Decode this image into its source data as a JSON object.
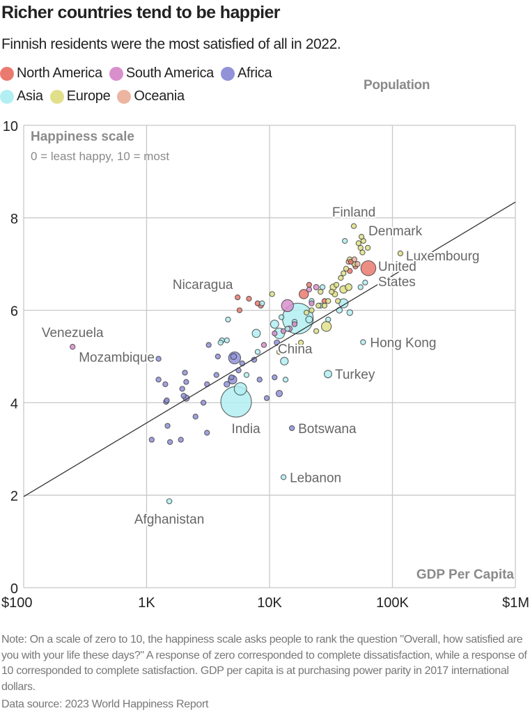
{
  "chart_data": {
    "type": "scatter",
    "title": "Richer countries tend to be happier",
    "subtitle": "Finnish residents were the most satisfied of all in 2022.",
    "xlabel": "GDP Per Capita",
    "ylabel": "Happiness scale",
    "ylabel_sub": "0 = least happy, 10 = most",
    "size_label": "Population",
    "x_scale": "log",
    "xlim": [
      100,
      1000000
    ],
    "ylim": [
      0,
      10
    ],
    "x_ticks": [
      {
        "value": 100,
        "label": "$100"
      },
      {
        "value": 1000,
        "label": "1K"
      },
      {
        "value": 10000,
        "label": "10K"
      },
      {
        "value": 100000,
        "label": "100K"
      },
      {
        "value": 1000000,
        "label": "$1M"
      }
    ],
    "y_ticks": [
      {
        "value": 0,
        "label": "0"
      },
      {
        "value": 2,
        "label": "2"
      },
      {
        "value": 4,
        "label": "4"
      },
      {
        "value": 6,
        "label": "6"
      },
      {
        "value": 8,
        "label": "8"
      },
      {
        "value": 10,
        "label": "10"
      }
    ],
    "grid": true,
    "legend_placement": "top-left",
    "regions": [
      {
        "name": "North America",
        "color": "#ea7a70"
      },
      {
        "name": "South America",
        "color": "#d98fcc"
      },
      {
        "name": "Africa",
        "color": "#9292d8"
      },
      {
        "name": "Asia",
        "color": "#b2eff2"
      },
      {
        "name": "Europe",
        "color": "#e1e08a"
      },
      {
        "name": "Oceania",
        "color": "#ecb5a2"
      }
    ],
    "trendline": {
      "from": [
        100,
        1.97
      ],
      "to": [
        1000000,
        8.34
      ]
    },
    "labeled_points": [
      {
        "label": "Finland",
        "gdp": 48500,
        "happiness": 7.82,
        "region": "Europe"
      },
      {
        "label": "Denmark",
        "gdp": 56000,
        "happiness": 7.59,
        "region": "Europe"
      },
      {
        "label": "Luxembourg",
        "gdp": 116000,
        "happiness": 7.23,
        "region": "Europe"
      },
      {
        "label": "United States",
        "gdp": 63700,
        "happiness": 6.91,
        "region": "North America"
      },
      {
        "label": "Nicaragua",
        "gdp": 5500,
        "happiness": 6.28,
        "region": "North America"
      },
      {
        "label": "Venezuela",
        "gdp": 250,
        "happiness": 5.21,
        "region": "South America"
      },
      {
        "label": "Mozambique",
        "gdp": 1250,
        "happiness": 4.95,
        "region": "Africa"
      },
      {
        "label": "China",
        "gdp": 17000,
        "happiness": 5.82,
        "region": "Asia"
      },
      {
        "label": "Hong Kong",
        "gdp": 57700,
        "happiness": 5.31,
        "region": "Asia"
      },
      {
        "label": "Turkey",
        "gdp": 29900,
        "happiness": 4.62,
        "region": "Asia"
      },
      {
        "label": "India",
        "gdp": 5350,
        "happiness": 4.02,
        "region": "Asia"
      },
      {
        "label": "Botswana",
        "gdp": 15200,
        "happiness": 3.45,
        "region": "Africa"
      },
      {
        "label": "Lebanon",
        "gdp": 13000,
        "happiness": 2.39,
        "region": "Asia"
      },
      {
        "label": "Afghanistan",
        "gdp": 1530,
        "happiness": 1.87,
        "region": "Asia"
      }
    ],
    "points": [
      [
        63700,
        6.91,
        "North America",
        333
      ],
      [
        5500,
        6.28,
        "North America",
        7
      ],
      [
        5700,
        6.0,
        "North America",
        10
      ],
      [
        8000,
        6.15,
        "North America",
        5
      ],
      [
        8500,
        6.1,
        "North America",
        10
      ],
      [
        19000,
        6.35,
        "North America",
        130
      ],
      [
        21000,
        6.55,
        "North America",
        4
      ],
      [
        28000,
        6.2,
        "North America",
        5
      ],
      [
        50000,
        6.95,
        "North America",
        38
      ],
      [
        46000,
        7.05,
        "North America",
        5
      ],
      [
        45000,
        6.85,
        "North America",
        5
      ],
      [
        6800,
        6.25,
        "North America",
        6
      ],
      [
        250,
        5.21,
        "South America",
        28
      ],
      [
        14000,
        6.1,
        "South America",
        215
      ],
      [
        14500,
        5.6,
        "South America",
        50
      ],
      [
        13000,
        5.55,
        "South America",
        30
      ],
      [
        11000,
        5.5,
        "South America",
        12
      ],
      [
        21000,
        6.45,
        "South America",
        19
      ],
      [
        22000,
        6.15,
        "South America",
        3
      ],
      [
        16000,
        5.7,
        "South America",
        18
      ],
      [
        9000,
        5.25,
        "South America",
        7
      ],
      [
        24000,
        6.5,
        "South America",
        45
      ],
      [
        1100,
        3.2,
        "Africa",
        8
      ],
      [
        1480,
        3.5,
        "Africa",
        12
      ],
      [
        1550,
        3.15,
        "Africa",
        20
      ],
      [
        1900,
        3.2,
        "Africa",
        6
      ],
      [
        1440,
        4.02,
        "Africa",
        14
      ],
      [
        1460,
        4.05,
        "Africa",
        12
      ],
      [
        1250,
        4.5,
        "Africa",
        10
      ],
      [
        1420,
        4.4,
        "Africa",
        6
      ],
      [
        1950,
        4.3,
        "Africa",
        20
      ],
      [
        2000,
        4.15,
        "Africa",
        22
      ],
      [
        2100,
        4.1,
        "Africa",
        60
      ],
      [
        2100,
        4.45,
        "Africa",
        35
      ],
      [
        2050,
        4.65,
        "Africa",
        12
      ],
      [
        2500,
        3.7,
        "Africa",
        30
      ],
      [
        2900,
        4.0,
        "Africa",
        28
      ],
      [
        3100,
        3.35,
        "Africa",
        5
      ],
      [
        3100,
        4.4,
        "Africa",
        17
      ],
      [
        3200,
        5.25,
        "Africa",
        13
      ],
      [
        3700,
        4.6,
        "Africa",
        25
      ],
      [
        3800,
        5.0,
        "Africa",
        30
      ],
      [
        4500,
        4.4,
        "Africa",
        50
      ],
      [
        4900,
        4.55,
        "Africa",
        30
      ],
      [
        5000,
        4.5,
        "Africa",
        110
      ],
      [
        5100,
        5.0,
        "Africa",
        55
      ],
      [
        5200,
        4.97,
        "Africa",
        215
      ],
      [
        5600,
        4.7,
        "Africa",
        8
      ],
      [
        6000,
        4.85,
        "Africa",
        30
      ],
      [
        7500,
        4.93,
        "Africa",
        40
      ],
      [
        8300,
        4.5,
        "Africa",
        5
      ],
      [
        9500,
        4.1,
        "Africa",
        3
      ],
      [
        11000,
        4.55,
        "Africa",
        2
      ],
      [
        12000,
        4.2,
        "Africa",
        60
      ],
      [
        11500,
        5.3,
        "Africa",
        45
      ],
      [
        1250,
        4.95,
        "Africa",
        32
      ],
      [
        15200,
        3.45,
        "Africa",
        3
      ],
      [
        5350,
        4.02,
        "Asia",
        1400
      ],
      [
        17000,
        5.82,
        "Asia",
        1410
      ],
      [
        1530,
        1.87,
        "Asia",
        40
      ],
      [
        13000,
        2.39,
        "Asia",
        6
      ],
      [
        29900,
        4.62,
        "Asia",
        85
      ],
      [
        57700,
        5.31,
        "Asia",
        7
      ],
      [
        5800,
        4.3,
        "Asia",
        230
      ],
      [
        4500,
        5.35,
        "Asia",
        25
      ],
      [
        7800,
        5.5,
        "Asia",
        100
      ],
      [
        8000,
        5.1,
        "Asia",
        30
      ],
      [
        13200,
        4.9,
        "Asia",
        90
      ],
      [
        11000,
        5.7,
        "Asia",
        100
      ],
      [
        12000,
        5.5,
        "Asia",
        170
      ],
      [
        6500,
        4.6,
        "Asia",
        35
      ],
      [
        4100,
        5.35,
        "Asia",
        30
      ],
      [
        4000,
        5.3,
        "Asia",
        10
      ],
      [
        4600,
        5.8,
        "Asia",
        7
      ],
      [
        8700,
        6.15,
        "Asia",
        3
      ],
      [
        12500,
        5.85,
        "Asia",
        35
      ],
      [
        14000,
        5.6,
        "Asia",
        10
      ],
      [
        16000,
        5.75,
        "Asia",
        20
      ],
      [
        21000,
        5.8,
        "Asia",
        70
      ],
      [
        22000,
        6.2,
        "Asia",
        35
      ],
      [
        26000,
        6.1,
        "Asia",
        20
      ],
      [
        37000,
        6.0,
        "Asia",
        50
      ],
      [
        40000,
        6.15,
        "Asia",
        125
      ],
      [
        45000,
        5.95,
        "Asia",
        52
      ],
      [
        30000,
        5.8,
        "Asia",
        4
      ],
      [
        60000,
        6.6,
        "Asia",
        6
      ],
      [
        41000,
        7.5,
        "Asia",
        9
      ],
      [
        27000,
        6.5,
        "Asia",
        10
      ],
      [
        13500,
        4.5,
        "Asia",
        5
      ],
      [
        55000,
        6.5,
        "Asia",
        3
      ],
      [
        48500,
        7.82,
        "Europe",
        6
      ],
      [
        56000,
        7.59,
        "Europe",
        6
      ],
      [
        116000,
        7.23,
        "Europe",
        1
      ],
      [
        53000,
        7.45,
        "Europe",
        5
      ],
      [
        55000,
        7.35,
        "Europe",
        9
      ],
      [
        57000,
        7.25,
        "Europe",
        18
      ],
      [
        58000,
        7.5,
        "Europe",
        9
      ],
      [
        63000,
        7.35,
        "Europe",
        5
      ],
      [
        45000,
        7.1,
        "Europe",
        10
      ],
      [
        49000,
        7.0,
        "Europe",
        11
      ],
      [
        40000,
        6.8,
        "Europe",
        5
      ],
      [
        38000,
        6.7,
        "Europe",
        10
      ],
      [
        42000,
        6.9,
        "Europe",
        3
      ],
      [
        44000,
        6.5,
        "Europe",
        68
      ],
      [
        35000,
        6.55,
        "Europe",
        10
      ],
      [
        34000,
        6.35,
        "Europe",
        47
      ],
      [
        33000,
        6.5,
        "Europe",
        60
      ],
      [
        30000,
        6.2,
        "Europe",
        2
      ],
      [
        28000,
        6.1,
        "Europe",
        4
      ],
      [
        26000,
        6.4,
        "Europe",
        38
      ],
      [
        25000,
        6.1,
        "Europe",
        10
      ],
      [
        22000,
        6.0,
        "Europe",
        3
      ],
      [
        20000,
        5.95,
        "Europe",
        4
      ],
      [
        29000,
        5.65,
        "Europe",
        145
      ],
      [
        24000,
        5.55,
        "Europe",
        7
      ],
      [
        10500,
        6.35,
        "Europe",
        3
      ],
      [
        12000,
        5.1,
        "Europe",
        7
      ],
      [
        40000,
        6.45,
        "Europe",
        84
      ],
      [
        32000,
        6.4,
        "Europe",
        5
      ],
      [
        36000,
        6.2,
        "Europe",
        2
      ],
      [
        18000,
        5.3,
        "Europe",
        3
      ],
      [
        49000,
        7.1,
        "Oceania",
        5
      ],
      [
        44000,
        7.05,
        "Oceania",
        26
      ],
      [
        52000,
        7.0,
        "Oceania",
        5
      ]
    ]
  },
  "footer": {
    "note": "Note: On a scale of zero to 10, the happiness scale asks people to rank the question \"Overall, how satisfied are you with your life these days?\" A response of zero corresponded to complete dissatisfaction, while a response of 10 corresponded to complete satisfaction. GDP per capita is at purchasing power parity in 2017 international dollars.",
    "source": "Data source: 2023 World Happiness Report"
  }
}
